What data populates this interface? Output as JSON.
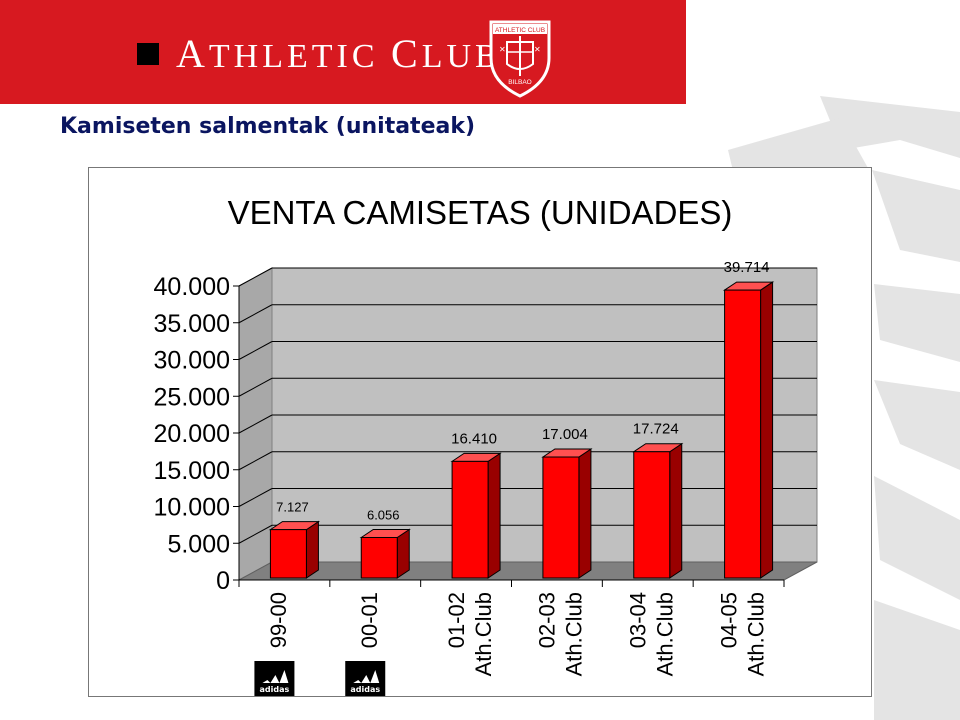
{
  "header": {
    "brand_text": "Athletic Club",
    "crest_top_text": "ATHLETIC CLUB",
    "crest_bottom_text": "BILBAO"
  },
  "slide": {
    "title": "Kamiseten salmentak (unitateak)"
  },
  "colors": {
    "brand_red": "#d71920",
    "bar_front": "#ff0000",
    "bar_side": "#990000",
    "plot_wall": "#c0c0c0",
    "plot_floor": "#808080",
    "title_navy": "#0a1560"
  },
  "icons": {
    "sponsor_logo": "adidas-logo-icon"
  },
  "chart_data": {
    "type": "bar",
    "title": "VENTA CAMISETAS (UNIDADES)",
    "xlabel": "",
    "ylabel": "",
    "ylim": [
      0,
      40000
    ],
    "y_ticks": [
      "0",
      "5.000",
      "10.000",
      "15.000",
      "20.000",
      "25.000",
      "30.000",
      "35.000",
      "40.000"
    ],
    "grid": true,
    "legend": "none",
    "categories": [
      [
        "99-00"
      ],
      [
        "00-01"
      ],
      [
        "01-02",
        "Ath.Club"
      ],
      [
        "02-03",
        "Ath.Club"
      ],
      [
        "03-04",
        "Ath.Club"
      ],
      [
        "04-05",
        "Ath.Club"
      ]
    ],
    "values": [
      7127,
      6056,
      16410,
      17004,
      17724,
      39714
    ],
    "value_labels": [
      "7.127",
      "6.056",
      "16.410",
      "17.004",
      "17.724",
      "39.714"
    ],
    "sponsor_logo_categories": [
      0,
      1
    ],
    "sponsor_logo_text": "adidas"
  }
}
